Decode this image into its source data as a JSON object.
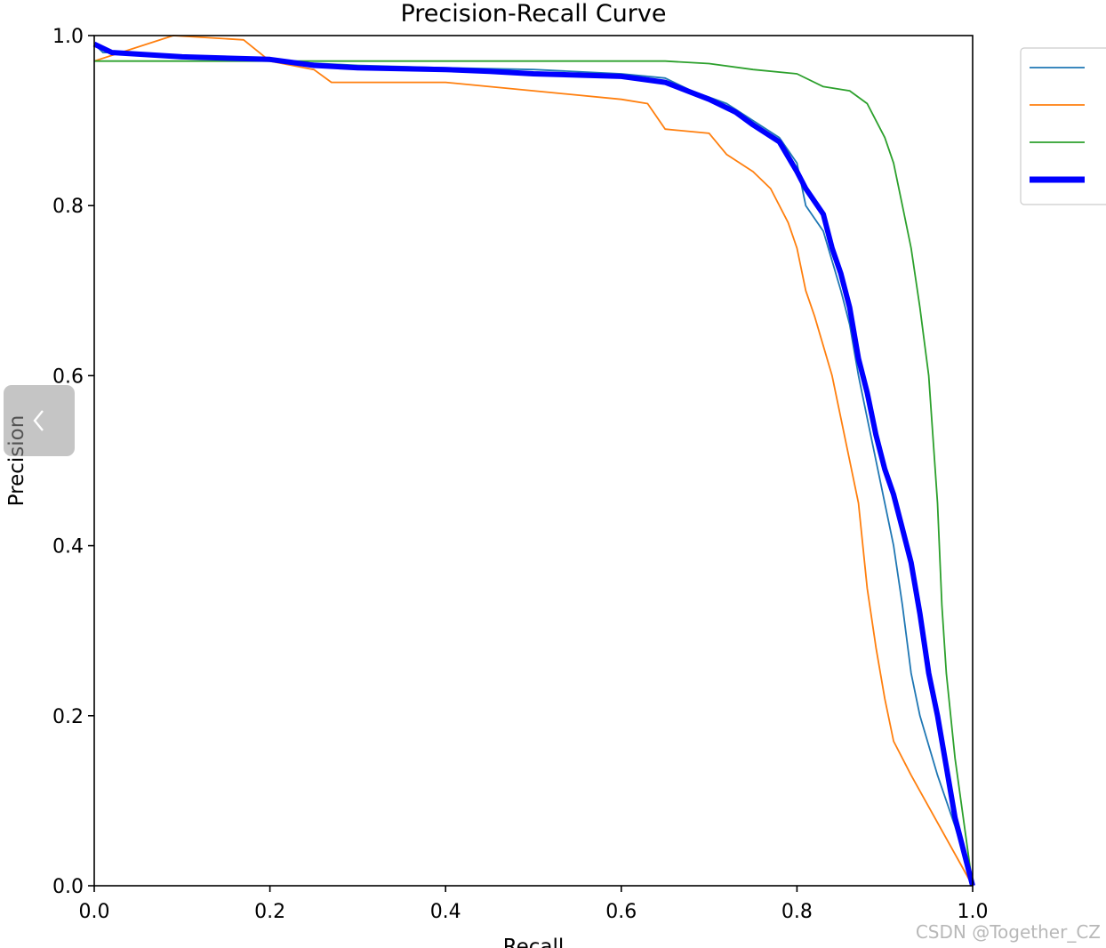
{
  "chart_data": {
    "type": "line",
    "title": "Precision-Recall Curve",
    "xlabel": "Recall",
    "ylabel": "Precision",
    "xlim": [
      0.0,
      1.0
    ],
    "ylim": [
      0.0,
      1.0
    ],
    "xticks": [
      "0.0",
      "0.2",
      "0.4",
      "0.6",
      "0.8",
      "1.0"
    ],
    "yticks": [
      "0.0",
      "0.2",
      "0.4",
      "0.6",
      "0.8",
      "1.0"
    ],
    "grid": false,
    "legend_position": "outside right, top",
    "series": [
      {
        "color": "#1f77b4",
        "linewidth": "thin",
        "points": [
          [
            0.0,
            0.99
          ],
          [
            0.01,
            0.98
          ],
          [
            0.02,
            0.98
          ],
          [
            0.1,
            0.975
          ],
          [
            0.2,
            0.97
          ],
          [
            0.3,
            0.965
          ],
          [
            0.4,
            0.962
          ],
          [
            0.5,
            0.96
          ],
          [
            0.6,
            0.955
          ],
          [
            0.65,
            0.95
          ],
          [
            0.68,
            0.935
          ],
          [
            0.72,
            0.92
          ],
          [
            0.75,
            0.9
          ],
          [
            0.78,
            0.88
          ],
          [
            0.8,
            0.85
          ],
          [
            0.81,
            0.8
          ],
          [
            0.83,
            0.77
          ],
          [
            0.85,
            0.7
          ],
          [
            0.86,
            0.66
          ],
          [
            0.87,
            0.6
          ],
          [
            0.88,
            0.55
          ],
          [
            0.89,
            0.5
          ],
          [
            0.9,
            0.45
          ],
          [
            0.91,
            0.4
          ],
          [
            0.92,
            0.33
          ],
          [
            0.93,
            0.25
          ],
          [
            0.94,
            0.2
          ],
          [
            0.96,
            0.13
          ],
          [
            0.98,
            0.07
          ],
          [
            1.0,
            0.0
          ]
        ]
      },
      {
        "color": "#ff7f0e",
        "linewidth": "thin",
        "points": [
          [
            0.0,
            0.97
          ],
          [
            0.09,
            1.0
          ],
          [
            0.17,
            0.995
          ],
          [
            0.2,
            0.97
          ],
          [
            0.25,
            0.96
          ],
          [
            0.27,
            0.945
          ],
          [
            0.4,
            0.945
          ],
          [
            0.45,
            0.94
          ],
          [
            0.5,
            0.935
          ],
          [
            0.6,
            0.925
          ],
          [
            0.63,
            0.92
          ],
          [
            0.65,
            0.89
          ],
          [
            0.7,
            0.885
          ],
          [
            0.72,
            0.86
          ],
          [
            0.75,
            0.84
          ],
          [
            0.77,
            0.82
          ],
          [
            0.79,
            0.78
          ],
          [
            0.8,
            0.75
          ],
          [
            0.81,
            0.7
          ],
          [
            0.82,
            0.67
          ],
          [
            0.84,
            0.6
          ],
          [
            0.85,
            0.55
          ],
          [
            0.86,
            0.5
          ],
          [
            0.87,
            0.45
          ],
          [
            0.88,
            0.35
          ],
          [
            0.89,
            0.28
          ],
          [
            0.9,
            0.22
          ],
          [
            0.91,
            0.17
          ],
          [
            0.93,
            0.13
          ],
          [
            1.0,
            0.0
          ]
        ]
      },
      {
        "color": "#2ca02c",
        "linewidth": "thin",
        "points": [
          [
            0.0,
            0.97
          ],
          [
            0.1,
            0.97
          ],
          [
            0.3,
            0.97
          ],
          [
            0.5,
            0.97
          ],
          [
            0.6,
            0.97
          ],
          [
            0.65,
            0.97
          ],
          [
            0.7,
            0.967
          ],
          [
            0.75,
            0.96
          ],
          [
            0.8,
            0.955
          ],
          [
            0.83,
            0.94
          ],
          [
            0.86,
            0.935
          ],
          [
            0.88,
            0.92
          ],
          [
            0.9,
            0.88
          ],
          [
            0.91,
            0.85
          ],
          [
            0.92,
            0.8
          ],
          [
            0.93,
            0.75
          ],
          [
            0.94,
            0.68
          ],
          [
            0.95,
            0.6
          ],
          [
            0.96,
            0.45
          ],
          [
            0.965,
            0.33
          ],
          [
            0.97,
            0.25
          ],
          [
            0.98,
            0.15
          ],
          [
            1.0,
            0.0
          ]
        ]
      },
      {
        "color": "#0000ff",
        "linewidth": "thick",
        "points": [
          [
            0.0,
            0.99
          ],
          [
            0.01,
            0.985
          ],
          [
            0.02,
            0.98
          ],
          [
            0.1,
            0.975
          ],
          [
            0.2,
            0.972
          ],
          [
            0.25,
            0.965
          ],
          [
            0.3,
            0.962
          ],
          [
            0.4,
            0.96
          ],
          [
            0.45,
            0.958
          ],
          [
            0.5,
            0.955
          ],
          [
            0.6,
            0.952
          ],
          [
            0.65,
            0.945
          ],
          [
            0.7,
            0.925
          ],
          [
            0.73,
            0.91
          ],
          [
            0.75,
            0.895
          ],
          [
            0.78,
            0.875
          ],
          [
            0.8,
            0.84
          ],
          [
            0.81,
            0.82
          ],
          [
            0.83,
            0.79
          ],
          [
            0.84,
            0.75
          ],
          [
            0.85,
            0.72
          ],
          [
            0.86,
            0.68
          ],
          [
            0.87,
            0.62
          ],
          [
            0.88,
            0.58
          ],
          [
            0.89,
            0.53
          ],
          [
            0.9,
            0.49
          ],
          [
            0.91,
            0.46
          ],
          [
            0.92,
            0.42
          ],
          [
            0.93,
            0.38
          ],
          [
            0.94,
            0.32
          ],
          [
            0.95,
            0.25
          ],
          [
            0.96,
            0.2
          ],
          [
            0.97,
            0.14
          ],
          [
            0.98,
            0.08
          ],
          [
            1.0,
            0.0
          ]
        ]
      }
    ]
  },
  "ui": {
    "back_icon": "chevron-left-icon",
    "watermark": "CSDN @Together_CZ"
  }
}
